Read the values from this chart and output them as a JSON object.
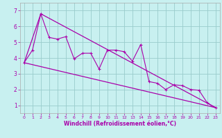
{
  "xlabel": "Windchill (Refroidissement éolien,°C)",
  "background_color": "#c8f0f0",
  "line_color": "#aa00aa",
  "grid_color": "#99cccc",
  "xlim": [
    -0.5,
    23.5
  ],
  "ylim": [
    0.5,
    7.5
  ],
  "xticks": [
    0,
    1,
    2,
    3,
    4,
    5,
    6,
    7,
    8,
    9,
    10,
    11,
    12,
    13,
    14,
    15,
    16,
    17,
    18,
    19,
    20,
    21,
    22,
    23
  ],
  "yticks": [
    1,
    2,
    3,
    4,
    5,
    6,
    7
  ],
  "series1_x": [
    0,
    1,
    2,
    3,
    4,
    5,
    6,
    7,
    8,
    9,
    10,
    11,
    12,
    13,
    14,
    15,
    16,
    17,
    18,
    19,
    20,
    21,
    22,
    23
  ],
  "series1_y": [
    3.7,
    4.5,
    6.8,
    5.3,
    5.2,
    5.35,
    3.95,
    4.3,
    4.3,
    3.3,
    4.5,
    4.5,
    4.4,
    3.8,
    4.85,
    2.5,
    2.4,
    2.0,
    2.3,
    2.25,
    2.0,
    1.95,
    1.15,
    0.85
  ],
  "series2_x": [
    0,
    23
  ],
  "series2_y": [
    3.7,
    0.85
  ],
  "series3_x": [
    0,
    2,
    23
  ],
  "series3_y": [
    3.7,
    6.8,
    0.85
  ]
}
